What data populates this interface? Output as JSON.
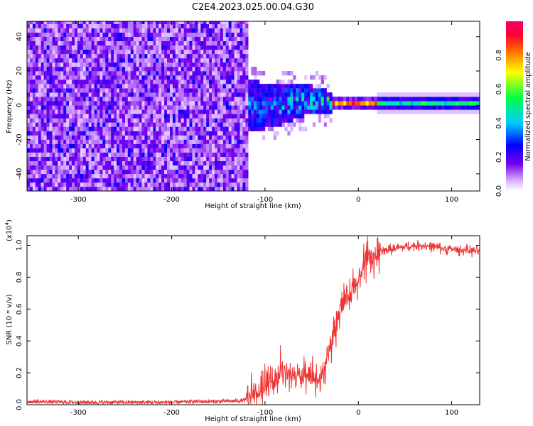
{
  "title": "C2E4.2023.025.00.04.G30",
  "colors": {
    "snr_line": "#ee3333",
    "axis": "#000000",
    "background": "#ffffff"
  },
  "chart_data": [
    {
      "type": "heatmap",
      "xlabel": "Height of straight line (km)",
      "ylabel": "Frequency (Hz)",
      "xlim": [
        -355,
        130
      ],
      "ylim": [
        -50,
        49
      ],
      "xticks": [
        -300,
        -200,
        -100,
        0,
        100
      ],
      "yticks": [
        -40,
        -20,
        0,
        20,
        40
      ],
      "colorbar": {
        "label": "Normalized spectral amplitude",
        "range": [
          0,
          1
        ],
        "ticks": [
          "0.0",
          "0.2",
          "0.4",
          "0.6",
          "0.8"
        ],
        "colormap": [
          "#ffffff",
          "#7700ee",
          "#0000ff",
          "#00ccff",
          "#00ff44",
          "#ffff00",
          "#ff6600",
          "#ff0033",
          "#ee0066"
        ]
      },
      "regions": [
        {
          "x_range": [
            -355,
            -120
          ],
          "freq_range": [
            -50,
            49
          ],
          "amplitude": "noise, ~0.1-0.25"
        },
        {
          "x_range": [
            -120,
            -30
          ],
          "freq_range": [
            -15,
            15
          ],
          "amplitude": "mixed, peak ~0.5"
        },
        {
          "x_range": [
            -30,
            20
          ],
          "freq_range": [
            -2,
            2
          ],
          "amplitude": "signal, peak ~0.95"
        },
        {
          "x_range": [
            20,
            130
          ],
          "freq_range": [
            -3,
            3
          ],
          "amplitude": "signal, ~0.2-0.8"
        }
      ]
    },
    {
      "type": "line",
      "xlabel": "Height of straight line (km)",
      "ylabel": "SNR (10 * v/v)",
      "multiplier": "(x10",
      "multiplier_exp": "4",
      "xlim": [
        -355,
        130
      ],
      "ylim": [
        0,
        1.06
      ],
      "xticks": [
        -300,
        -200,
        -100,
        0,
        100
      ],
      "yticks": [
        "0.0",
        "0.2",
        "0.4",
        "0.6",
        "0.8",
        "1.0"
      ],
      "series": [
        {
          "x": [
            -355,
            -300,
            -250,
            -200,
            -170,
            -150,
            -125,
            -110,
            -95,
            -80,
            -65,
            -50,
            -40,
            -30,
            -20,
            -10,
            0,
            10,
            20,
            30,
            50,
            70,
            90,
            110,
            130
          ],
          "y": [
            0.02,
            0.015,
            0.015,
            0.015,
            0.02,
            0.02,
            0.025,
            0.05,
            0.14,
            0.2,
            0.18,
            0.15,
            0.15,
            0.35,
            0.6,
            0.66,
            0.78,
            0.9,
            0.95,
            0.97,
            0.99,
            1.0,
            0.98,
            0.97,
            0.96
          ]
        }
      ]
    }
  ]
}
